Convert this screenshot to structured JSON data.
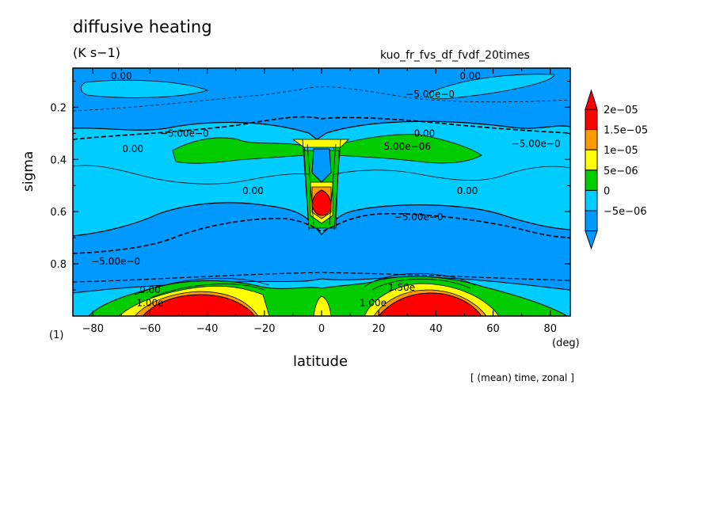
{
  "title": "diffusive heating",
  "units": "(K s−1)",
  "run_name": "kuo_fr_fvs_df_fvdf_20times",
  "figure_number": "(1)",
  "x_unit": "(deg)",
  "note": "[ (mean) time, zonal ]",
  "chart_data": {
    "type": "contour",
    "xlabel": "latitude",
    "ylabel": "sigma",
    "x_range": [
      -87,
      87
    ],
    "y_range": [
      0.05,
      1.0
    ],
    "y_reversed": true,
    "x_ticks": [
      -80,
      -60,
      -40,
      -20,
      0,
      20,
      40,
      60,
      80
    ],
    "x_tick_labels": [
      "−80",
      "−60",
      "−40",
      "−20",
      "0",
      "20",
      "40",
      "60",
      "80"
    ],
    "y_ticks": [
      0.2,
      0.4,
      0.6,
      0.8
    ],
    "y_tick_labels": [
      "0.2",
      "0.4",
      "0.6",
      "0.8"
    ],
    "levels": [
      -5e-06,
      0,
      5e-06,
      1e-05,
      1.5e-05,
      2e-05
    ],
    "colorbar": [
      {
        "label": "2e−05",
        "color": "#ff0000"
      },
      {
        "label": "1.5e−05",
        "color": "#ff9900"
      },
      {
        "label": "1e−05",
        "color": "#ffff00"
      },
      {
        "label": "5e−06",
        "color": "#00cc00"
      },
      {
        "label": "0",
        "color": "#00ccff"
      },
      {
        "label": "−5e−06",
        "color": "#0099ff"
      }
    ],
    "background_color": "#0099ff",
    "contour_labels": [
      {
        "text": "0.00",
        "lat": -70,
        "sigma": 0.08
      },
      {
        "text": "0.00",
        "lat": 52,
        "sigma": 0.08
      },
      {
        "text": "−5.00e−0",
        "lat": 38,
        "sigma": 0.15
      },
      {
        "text": "−5.00e−0",
        "lat": -48,
        "sigma": 0.3
      },
      {
        "text": "0.00",
        "lat": -66,
        "sigma": 0.36
      },
      {
        "text": "0.00",
        "lat": 36,
        "sigma": 0.3
      },
      {
        "text": "5.00e−06",
        "lat": 30,
        "sigma": 0.35
      },
      {
        "text": "−5.00e−0",
        "lat": 75,
        "sigma": 0.34
      },
      {
        "text": "0.00",
        "lat": -24,
        "sigma": 0.52
      },
      {
        "text": "0.00",
        "lat": 51,
        "sigma": 0.52
      },
      {
        "text": "−5.00e−0",
        "lat": 34,
        "sigma": 0.62
      },
      {
        "text": "−5.00e−0",
        "lat": -72,
        "sigma": 0.79
      },
      {
        "text": "0.00",
        "lat": -60,
        "sigma": 0.9
      },
      {
        "text": "1.00e",
        "lat": -60,
        "sigma": 0.95
      },
      {
        "text": "1.50e",
        "lat": 28,
        "sigma": 0.89
      },
      {
        "text": "1.00e",
        "lat": 18,
        "sigma": 0.95
      }
    ]
  }
}
